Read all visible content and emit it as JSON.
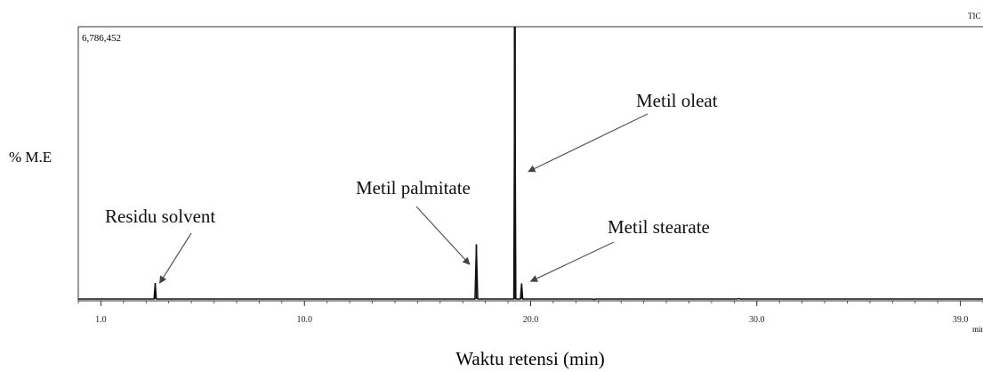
{
  "chart_data": {
    "type": "line",
    "corner_label": "TIC",
    "x_unit": "min",
    "max_intensity_label": "6,786,452",
    "ylabel": "% M.E",
    "xlabel": "Waktu retensi (min)",
    "xlim": [
      0.0,
      40.0
    ],
    "ylim": [
      0,
      6786452
    ],
    "x_ticks": [
      {
        "value": 1.0,
        "label": "1.0"
      },
      {
        "value": 10.0,
        "label": "10.0"
      },
      {
        "value": 20.0,
        "label": "20.0"
      },
      {
        "value": 30.0,
        "label": "30.0"
      },
      {
        "value": 39.0,
        "label": "39.0"
      }
    ],
    "peaks": [
      {
        "x": 3.4,
        "y": 440000
      },
      {
        "x": 17.6,
        "y": 1400000
      },
      {
        "x": 19.3,
        "y": 6786452
      },
      {
        "x": 19.6,
        "y": 430000
      },
      {
        "x": 21.1,
        "y": 45000
      },
      {
        "x": 22.8,
        "y": 30000
      },
      {
        "x": 29.2,
        "y": 60000
      }
    ],
    "annotations": [
      {
        "label": "Residu solvent",
        "target_x": 3.6,
        "target_y": 440000
      },
      {
        "label": "Metil palmitate",
        "target_x": 17.3,
        "target_y": 900000
      },
      {
        "label": "Metil oleat",
        "target_x": 19.9,
        "target_y": 3200000
      },
      {
        "label": "Metil stearate",
        "target_x": 20.0,
        "target_y": 480000
      }
    ]
  }
}
